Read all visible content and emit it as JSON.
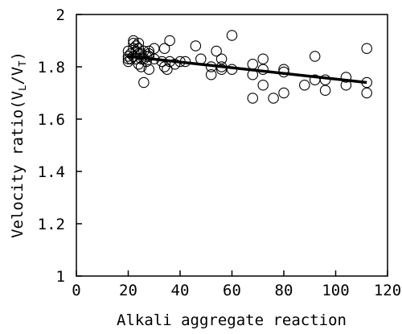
{
  "chart_data": {
    "type": "scatter",
    "title": "",
    "xlabel": "Alkali aggregate reaction",
    "ylabel": {
      "prefix": "Velocity ratio(V",
      "sub1": "L",
      "mid": "/V",
      "sub2": "T",
      "suffix": ")"
    },
    "xlim": [
      0,
      120
    ],
    "ylim": [
      1,
      2
    ],
    "xticks": [
      0,
      20,
      40,
      60,
      80,
      100,
      120
    ],
    "yticks": [
      1,
      1.2,
      1.4,
      1.6,
      1.8,
      2
    ],
    "ytick_labels": [
      "1",
      "1.2",
      "1.4",
      "1.6",
      "1.8",
      "2"
    ],
    "grid": false,
    "legend": "none",
    "series": [
      {
        "kind": "scatter",
        "marker": "open-circle",
        "x": [
          20,
          20,
          20,
          20,
          21,
          21,
          22,
          22,
          22,
          22,
          23,
          23,
          23,
          24,
          24,
          24,
          24,
          25,
          25,
          25,
          26,
          26,
          26,
          27,
          27,
          28,
          28,
          28,
          28,
          30,
          30,
          33,
          34,
          34,
          35,
          36,
          36,
          38,
          40,
          42,
          46,
          48,
          52,
          52,
          54,
          56,
          56,
          56,
          60,
          60,
          68,
          68,
          68,
          72,
          72,
          72,
          76,
          80,
          80,
          80,
          88,
          92,
          92,
          96,
          96,
          104,
          104,
          112,
          112,
          112
        ],
        "y": [
          1.82,
          1.83,
          1.84,
          1.86,
          1.83,
          1.85,
          1.87,
          1.89,
          1.84,
          1.9,
          1.86,
          1.83,
          1.88,
          1.81,
          1.85,
          1.87,
          1.89,
          1.83,
          1.85,
          1.8,
          1.74,
          1.86,
          1.83,
          1.84,
          1.82,
          1.85,
          1.84,
          1.86,
          1.79,
          1.83,
          1.87,
          1.82,
          1.8,
          1.87,
          1.79,
          1.82,
          1.9,
          1.81,
          1.82,
          1.82,
          1.88,
          1.83,
          1.77,
          1.8,
          1.86,
          1.83,
          1.8,
          1.79,
          1.79,
          1.92,
          1.68,
          1.77,
          1.81,
          1.73,
          1.79,
          1.83,
          1.68,
          1.7,
          1.78,
          1.79,
          1.73,
          1.75,
          1.84,
          1.71,
          1.75,
          1.73,
          1.76,
          1.7,
          1.74,
          1.87
        ]
      },
      {
        "kind": "line",
        "x": [
          20,
          112
        ],
        "y": [
          1.84,
          1.74
        ]
      }
    ]
  }
}
